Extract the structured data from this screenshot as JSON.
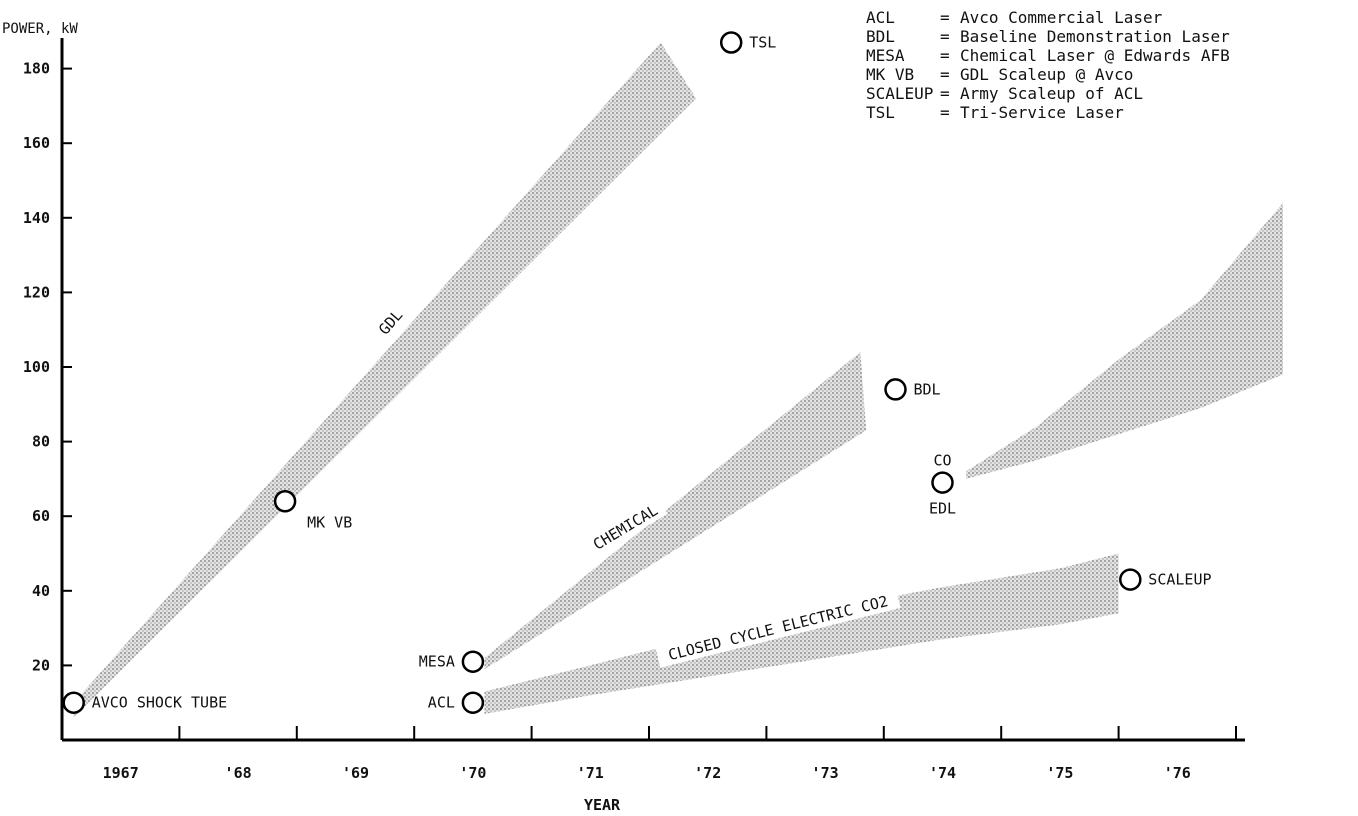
{
  "chart_data": {
    "type": "area",
    "title": "",
    "ylabel": "POWER, kW",
    "xlabel": "YEAR",
    "ylim": [
      0,
      190
    ],
    "xlim": [
      1966.5,
      1977.0
    ],
    "y_ticks": [
      "20",
      "40",
      "60",
      "80",
      "100",
      "120",
      "140",
      "160",
      "180"
    ],
    "y_tick_values": [
      20,
      40,
      60,
      80,
      100,
      120,
      140,
      160,
      180
    ],
    "x_ticks": [
      "1967",
      "'68",
      "'69",
      "'70",
      "'71",
      "'72",
      "'73",
      "'74",
      "'75",
      "'76"
    ],
    "x_tick_values": [
      1967,
      1968,
      1969,
      1970,
      1971,
      1972,
      1973,
      1974,
      1975,
      1976
    ],
    "grid": false,
    "legend_position": "top-right",
    "legend": [
      {
        "abbr": "ACL",
        "eq": "=",
        "desc": "Avco Commercial Laser"
      },
      {
        "abbr": "BDL",
        "eq": "=",
        "desc": "Baseline Demonstration Laser"
      },
      {
        "abbr": "MESA",
        "eq": "=",
        "desc": "Chemical Laser @ Edwards AFB"
      },
      {
        "abbr": "MK VB",
        "eq": "=",
        "desc": "GDL Scaleup @ Avco"
      },
      {
        "abbr": "SCALEUP",
        "eq": "=",
        "desc": "Army Scaleup of ACL"
      },
      {
        "abbr": "TSL",
        "eq": "=",
        "desc": "Tri-Service Laser"
      }
    ],
    "points": [
      {
        "label": "AVCO SHOCK TUBE",
        "x": 1966.6,
        "y": 10,
        "label_pos": "right"
      },
      {
        "label": "MK VB",
        "x": 1968.4,
        "y": 64,
        "label_pos": "below-right"
      },
      {
        "label": "TSL",
        "x": 1972.2,
        "y": 187,
        "label_pos": "right"
      },
      {
        "label": "MESA",
        "x": 1970.0,
        "y": 21,
        "label_pos": "left"
      },
      {
        "label": "ACL",
        "x": 1970.0,
        "y": 10,
        "label_pos": "left"
      },
      {
        "label": "BDL",
        "x": 1973.6,
        "y": 94,
        "label_pos": "right"
      },
      {
        "label": "CO",
        "x": 1974.0,
        "y": 69,
        "label_pos": "above"
      },
      {
        "label": "EDL",
        "x": 1974.0,
        "y": 69,
        "label_pos": "below"
      },
      {
        "label": "SCALEUP",
        "x": 1975.6,
        "y": 43,
        "label_pos": "right"
      }
    ],
    "bands": [
      {
        "name": "GDL",
        "upper": [
          [
            1966.6,
            10
          ],
          [
            1971.6,
            187
          ]
        ],
        "lower": [
          [
            1966.6,
            6
          ],
          [
            1971.9,
            172
          ]
        ],
        "label_at": [
          1969.3,
          112
        ],
        "label_angle": -49
      },
      {
        "name": "CHEMICAL",
        "upper": [
          [
            1970.1,
            22
          ],
          [
            1973.3,
            104
          ]
        ],
        "lower": [
          [
            1970.1,
            19
          ],
          [
            1973.35,
            83
          ]
        ],
        "label_at": [
          1971.3,
          57
        ],
        "label_angle": -31
      },
      {
        "name": "CLOSED CYCLE ELECTRIC CO2",
        "upper": [
          [
            1970.1,
            13
          ],
          [
            1971.0,
            20
          ],
          [
            1972.0,
            28
          ],
          [
            1973.0,
            35
          ],
          [
            1974.0,
            41
          ],
          [
            1975.0,
            46
          ],
          [
            1975.5,
            50
          ]
        ],
        "lower": [
          [
            1970.1,
            7
          ],
          [
            1971.0,
            12
          ],
          [
            1972.0,
            17
          ],
          [
            1973.0,
            22
          ],
          [
            1974.0,
            27
          ],
          [
            1975.0,
            31
          ],
          [
            1975.5,
            34
          ]
        ],
        "label_at": [
          1972.6,
          30
        ],
        "label_angle": -14
      },
      {
        "name": "CO",
        "upper": [
          [
            1974.2,
            72
          ],
          [
            1974.8,
            84
          ],
          [
            1975.5,
            102
          ],
          [
            1976.2,
            118
          ],
          [
            1976.9,
            144
          ]
        ],
        "lower": [
          [
            1974.2,
            70
          ],
          [
            1974.8,
            75
          ],
          [
            1975.5,
            82
          ],
          [
            1976.2,
            89
          ],
          [
            1976.9,
            98
          ]
        ],
        "label_at": null,
        "label_angle": 0
      }
    ]
  }
}
